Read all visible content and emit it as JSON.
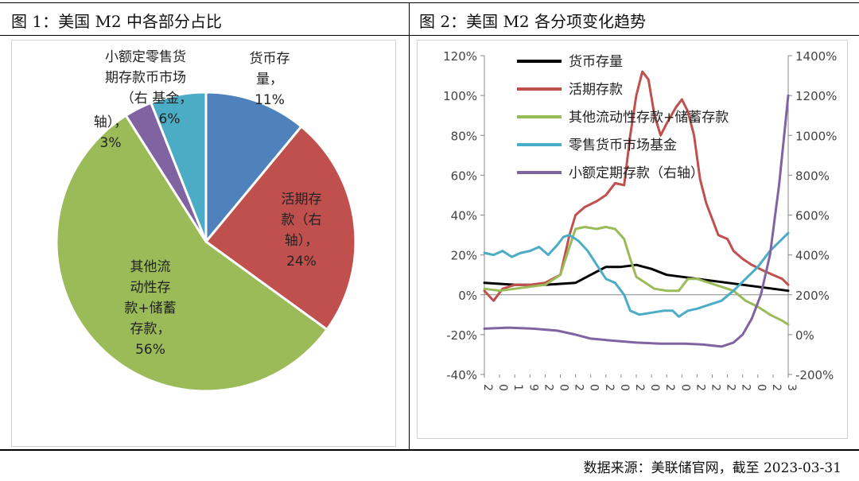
{
  "titles": {
    "left": "图 1：美国 M2 中各部分占比",
    "right": "图 2：美国 M2  各分项变化趋势"
  },
  "source": "数据来源：美联储官网，截至 2023-03-31",
  "chart_data": [
    {
      "type": "pie",
      "slices": [
        {
          "label": "货币存量，11%",
          "value": 11,
          "color": "#4f81bd"
        },
        {
          "label": "活期存款（右轴），24%",
          "value": 24,
          "color": "#c0504d"
        },
        {
          "label": "其他流动性存款+储蓄存款，56%",
          "value": 56,
          "color": "#9bbb59"
        },
        {
          "label": "小额定期存款（右轴），3%",
          "value": 3,
          "color": "#8064a2"
        },
        {
          "label": "零售货币市场基金，6%",
          "value": 6,
          "color": "#4bacc6"
        }
      ],
      "slice_labels": {
        "currency": [
          "货币存",
          "量，",
          "11%"
        ],
        "demand": [
          "活期存",
          "款（右",
          "轴），",
          "24%"
        ],
        "savings": [
          "其他流",
          "动性存",
          "款+储蓄",
          "存款，",
          "56%"
        ],
        "smalltime": [
          "轴），",
          "3%"
        ],
        "mmf": [
          "小额定零售货",
          "期存款币市场",
          "（右  基金，",
          "6%"
        ]
      }
    },
    {
      "type": "line",
      "x_tick_labels": [
        "2",
        "0",
        "1",
        "9",
        "2",
        "0",
        "2",
        "0",
        "2",
        "0",
        "2",
        "0",
        "2",
        "0",
        "2",
        "2",
        "2",
        "2",
        "0",
        "2",
        "3"
      ],
      "ylim_left": [
        -40,
        120
      ],
      "ylim_right": [
        -200,
        1400
      ],
      "yticks_left": [
        "-40%",
        "-20%",
        "0%",
        "20%",
        "40%",
        "60%",
        "80%",
        "100%",
        "120%"
      ],
      "yticks_right": [
        "-200%",
        "0%",
        "200%",
        "400%",
        "600%",
        "800%",
        "1000%",
        "1200%",
        "1400%"
      ],
      "x_range": [
        0,
        100
      ],
      "series": [
        {
          "name": "货币存量",
          "color": "#000000",
          "axis": "left",
          "points": [
            [
              0,
              6
            ],
            [
              10,
              5
            ],
            [
              20,
              5
            ],
            [
              30,
              6
            ],
            [
              35,
              10
            ],
            [
              40,
              14
            ],
            [
              45,
              14
            ],
            [
              50,
              15
            ],
            [
              55,
              13
            ],
            [
              60,
              10
            ],
            [
              70,
              8
            ],
            [
              80,
              6
            ],
            [
              90,
              4
            ],
            [
              100,
              2
            ]
          ]
        },
        {
          "name": "活期存款",
          "color": "#c0504d",
          "axis": "left",
          "points": [
            [
              0,
              2
            ],
            [
              3,
              -3
            ],
            [
              6,
              3
            ],
            [
              10,
              5
            ],
            [
              15,
              5
            ],
            [
              20,
              6
            ],
            [
              25,
              10
            ],
            [
              28,
              30
            ],
            [
              30,
              40
            ],
            [
              33,
              44
            ],
            [
              37,
              47
            ],
            [
              40,
              50
            ],
            [
              43,
              56
            ],
            [
              46,
              55
            ],
            [
              48,
              80
            ],
            [
              50,
              100
            ],
            [
              52,
              112
            ],
            [
              54,
              108
            ],
            [
              56,
              90
            ],
            [
              58,
              80
            ],
            [
              60,
              86
            ],
            [
              63,
              94
            ],
            [
              65,
              98
            ],
            [
              67,
              92
            ],
            [
              69,
              80
            ],
            [
              71,
              58
            ],
            [
              73,
              46
            ],
            [
              75,
              38
            ],
            [
              77,
              30
            ],
            [
              80,
              28
            ],
            [
              82,
              22
            ],
            [
              85,
              18
            ],
            [
              88,
              15
            ],
            [
              92,
              12
            ],
            [
              95,
              10
            ],
            [
              98,
              8
            ],
            [
              100,
              5
            ]
          ]
        },
        {
          "name": "其他流动性存款+储蓄存款",
          "color": "#9bbb59",
          "axis": "left",
          "points": [
            [
              0,
              3
            ],
            [
              5,
              2
            ],
            [
              10,
              3
            ],
            [
              15,
              4
            ],
            [
              20,
              5
            ],
            [
              25,
              10
            ],
            [
              28,
              24
            ],
            [
              30,
              33
            ],
            [
              33,
              34
            ],
            [
              37,
              33
            ],
            [
              40,
              34
            ],
            [
              43,
              33
            ],
            [
              46,
              28
            ],
            [
              48,
              18
            ],
            [
              50,
              9
            ],
            [
              53,
              6
            ],
            [
              56,
              3
            ],
            [
              60,
              2
            ],
            [
              64,
              2
            ],
            [
              67,
              8
            ],
            [
              70,
              8
            ],
            [
              74,
              6
            ],
            [
              78,
              4
            ],
            [
              82,
              2
            ],
            [
              86,
              -3
            ],
            [
              90,
              -6
            ],
            [
              94,
              -10
            ],
            [
              98,
              -13
            ],
            [
              100,
              -15
            ]
          ]
        },
        {
          "name": "零售货币市场基金",
          "color": "#4bacc6",
          "axis": "left",
          "points": [
            [
              0,
              21
            ],
            [
              3,
              20
            ],
            [
              6,
              22
            ],
            [
              9,
              19
            ],
            [
              12,
              21
            ],
            [
              15,
              22
            ],
            [
              18,
              24
            ],
            [
              21,
              20
            ],
            [
              24,
              25
            ],
            [
              26,
              29
            ],
            [
              28,
              30
            ],
            [
              31,
              27
            ],
            [
              34,
              22
            ],
            [
              37,
              15
            ],
            [
              40,
              8
            ],
            [
              43,
              6
            ],
            [
              46,
              0
            ],
            [
              48,
              -8
            ],
            [
              51,
              -10
            ],
            [
              55,
              -9
            ],
            [
              59,
              -8
            ],
            [
              62,
              -8
            ],
            [
              64,
              -11
            ],
            [
              67,
              -8
            ],
            [
              70,
              -7
            ],
            [
              74,
              -5
            ],
            [
              78,
              -3
            ],
            [
              82,
              2
            ],
            [
              86,
              8
            ],
            [
              90,
              14
            ],
            [
              94,
              22
            ],
            [
              98,
              28
            ],
            [
              100,
              31
            ]
          ]
        },
        {
          "name": "小额定期存款（右轴）",
          "color": "#8064a2",
          "axis": "right",
          "points": [
            [
              0,
              30
            ],
            [
              8,
              35
            ],
            [
              16,
              30
            ],
            [
              24,
              20
            ],
            [
              30,
              0
            ],
            [
              35,
              -20
            ],
            [
              42,
              -30
            ],
            [
              50,
              -40
            ],
            [
              58,
              -45
            ],
            [
              66,
              -45
            ],
            [
              72,
              -50
            ],
            [
              78,
              -60
            ],
            [
              82,
              -40
            ],
            [
              85,
              0
            ],
            [
              88,
              80
            ],
            [
              91,
              200
            ],
            [
              94,
              400
            ],
            [
              97,
              750
            ],
            [
              99,
              1050
            ],
            [
              100,
              1200
            ]
          ]
        }
      ]
    }
  ]
}
